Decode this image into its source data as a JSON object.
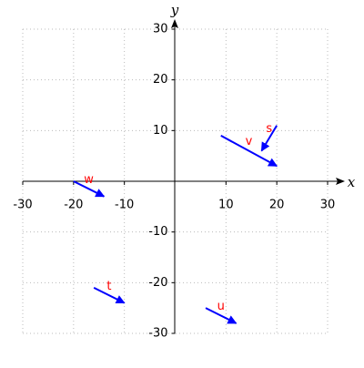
{
  "chart_data": {
    "type": "quiver",
    "xlabel": "x",
    "ylabel": "y",
    "xlim": [
      -30,
      30
    ],
    "ylim": [
      -30,
      30
    ],
    "xticks": [
      -30,
      -20,
      -10,
      10,
      20,
      30
    ],
    "yticks": [
      -30,
      -20,
      -10,
      10,
      20,
      30
    ],
    "grid": true,
    "color": "#0000ff",
    "label_color": "#ff0000",
    "vectors": [
      {
        "label": "s",
        "x": 20,
        "y": 11,
        "dx": -3,
        "dy": -5
      },
      {
        "label": "v",
        "x": 9,
        "y": 9,
        "dx": 11,
        "dy": -6
      },
      {
        "label": "w",
        "x": -20,
        "y": 0,
        "dx": 6,
        "dy": -3
      },
      {
        "label": "t",
        "x": -16,
        "y": -21,
        "dx": 6,
        "dy": -3
      },
      {
        "label": "u",
        "x": 6,
        "y": -25,
        "dx": 6,
        "dy": -3
      }
    ]
  }
}
